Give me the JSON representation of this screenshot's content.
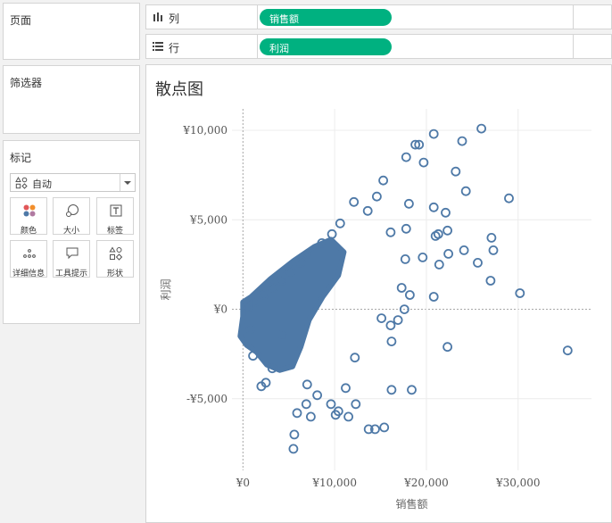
{
  "left_panel": {
    "pages_title": "页面",
    "filters_title": "筛选器",
    "marks": {
      "title": "标记",
      "mark_type": "自动",
      "buttons": [
        {
          "id": "color",
          "label": "颜色",
          "icon": "color-icon"
        },
        {
          "id": "size",
          "label": "大小",
          "icon": "size-icon"
        },
        {
          "id": "label",
          "label": "标签",
          "icon": "text-label-icon"
        },
        {
          "id": "detail",
          "label": "详细信息",
          "icon": "detail-icon"
        },
        {
          "id": "tooltip",
          "label": "工具提示",
          "icon": "tooltip-icon"
        },
        {
          "id": "shape",
          "label": "形状",
          "icon": "shape-icon"
        }
      ]
    }
  },
  "shelves": {
    "columns": {
      "label": "列",
      "pill": "销售额"
    },
    "rows": {
      "label": "行",
      "pill": "利润"
    }
  },
  "colors": {
    "pill": "#00b180",
    "mark": "#4e79a7"
  },
  "sheet": {
    "title": "散点图"
  },
  "chart_data": {
    "type": "scatter",
    "title": "散点图",
    "xlabel": "销售额",
    "ylabel": "利润",
    "xlim": [
      -1200,
      38000
    ],
    "ylim": [
      -9000,
      11200
    ],
    "x_ticks": [
      {
        "value": 0,
        "label": "¥0"
      },
      {
        "value": 10000,
        "label": "¥10,000"
      },
      {
        "value": 20000,
        "label": "¥20,000"
      },
      {
        "value": 30000,
        "label": "¥30,000"
      }
    ],
    "y_ticks": [
      {
        "value": -5000,
        "label": "-¥5,000"
      },
      {
        "value": 0,
        "label": "¥0"
      },
      {
        "value": 5000,
        "label": "¥5,000"
      },
      {
        "value": 10000,
        "label": "¥10,000"
      }
    ],
    "grid": true,
    "marker": "open-circle",
    "series": [
      {
        "points": [
          [
            26000,
            10100
          ],
          [
            20800,
            9800
          ],
          [
            19200,
            9200
          ],
          [
            18800,
            9200
          ],
          [
            23900,
            9400
          ],
          [
            19700,
            8200
          ],
          [
            17800,
            8500
          ],
          [
            23200,
            7700
          ],
          [
            24300,
            6600
          ],
          [
            29000,
            6200
          ],
          [
            20800,
            5700
          ],
          [
            22100,
            5400
          ],
          [
            18100,
            5900
          ],
          [
            17800,
            4500
          ],
          [
            21000,
            4100
          ],
          [
            21300,
            4200
          ],
          [
            22300,
            4400
          ],
          [
            27100,
            4000
          ],
          [
            27300,
            3300
          ],
          [
            24100,
            3300
          ],
          [
            25600,
            2600
          ],
          [
            22400,
            3100
          ],
          [
            21400,
            2500
          ],
          [
            19600,
            2900
          ],
          [
            17700,
            2800
          ],
          [
            27000,
            1600
          ],
          [
            30200,
            900
          ],
          [
            35400,
            -2300
          ],
          [
            22300,
            -2100
          ],
          [
            20800,
            700
          ],
          [
            18200,
            800
          ],
          [
            17300,
            1200
          ],
          [
            17600,
            0
          ],
          [
            16900,
            -600
          ],
          [
            16100,
            -900
          ],
          [
            16200,
            -1800
          ],
          [
            15100,
            -500
          ],
          [
            16200,
            -4500
          ],
          [
            18400,
            -4500
          ],
          [
            15400,
            -6600
          ],
          [
            14400,
            -6700
          ],
          [
            13700,
            -6700
          ],
          [
            12300,
            -5300
          ],
          [
            11500,
            -6000
          ],
          [
            10100,
            -5900
          ],
          [
            9600,
            -5300
          ],
          [
            10400,
            -5700
          ],
          [
            7400,
            -6000
          ],
          [
            5600,
            -7000
          ],
          [
            5500,
            -7800
          ],
          [
            5900,
            -5800
          ],
          [
            6900,
            -5300
          ],
          [
            7000,
            -4200
          ],
          [
            8100,
            -4800
          ],
          [
            11200,
            -4400
          ],
          [
            12200,
            -2700
          ],
          [
            16100,
            4300
          ],
          [
            15300,
            7200
          ],
          [
            14600,
            6300
          ],
          [
            13600,
            5500
          ],
          [
            12100,
            6000
          ],
          [
            10600,
            4800
          ],
          [
            9700,
            4200
          ],
          [
            8600,
            3700
          ],
          [
            7100,
            3100
          ],
          [
            6300,
            2600
          ],
          [
            5200,
            2100
          ],
          [
            4200,
            1600
          ],
          [
            3300,
            1200
          ],
          [
            2300,
            800
          ],
          [
            1300,
            400
          ],
          [
            500,
            100
          ],
          [
            4300,
            -1400
          ],
          [
            3200,
            -3300
          ],
          [
            2000,
            -4300
          ],
          [
            2500,
            -4100
          ],
          [
            1100,
            -2600
          ],
          [
            800,
            -1100
          ]
        ]
      }
    ]
  }
}
